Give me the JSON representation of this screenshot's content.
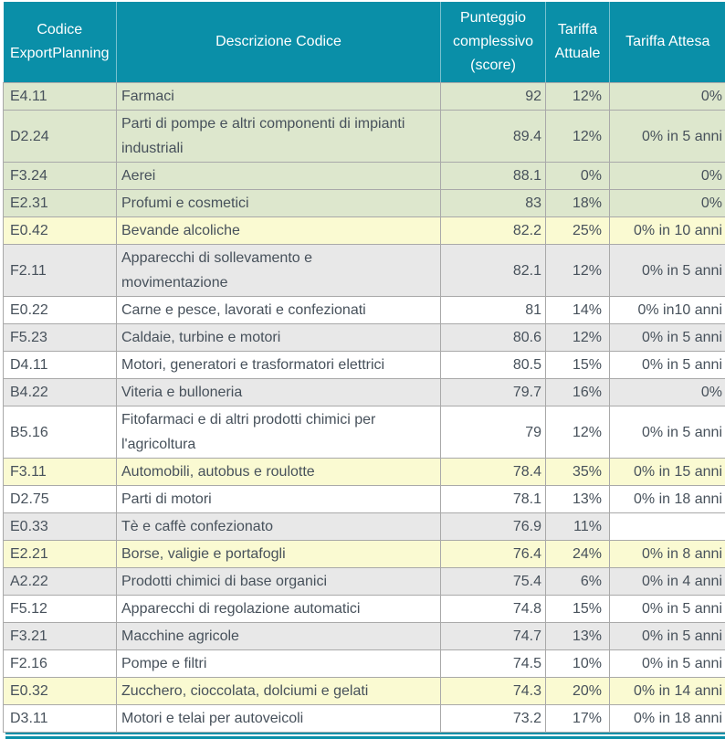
{
  "colors": {
    "header_bg": "#0a8fa8",
    "header_text": "#ffffff",
    "row_green": "#dde7cd",
    "row_yellow": "#fafad2",
    "row_gray": "#e8e8e8",
    "row_white": "#ffffff",
    "grid_line": "#a9a9a9",
    "body_text": "#47515b",
    "bottom_border": "#0a8fa8"
  },
  "chart_data": {
    "type": "table",
    "columns": [
      "Codice ExportPlanning",
      "Descrizione Codice",
      "Punteggio complessivo (score)",
      "Tariffa Attuale",
      "Tariffa Attesa"
    ],
    "rows": [
      {
        "code": "E4.11",
        "description": "Farmaci",
        "score": "92",
        "tariffa_attuale": "12%",
        "tariffa_attesa": "0%",
        "row_bg": "green"
      },
      {
        "code": "D2.24",
        "description": "Parti di pompe e altri componenti di impianti\nindustriali",
        "score": "89.4",
        "tariffa_attuale": "12%",
        "tariffa_attesa": "0% in 5 anni",
        "row_bg": "green"
      },
      {
        "code": "F3.24",
        "description": "Aerei",
        "score": "88.1",
        "tariffa_attuale": "0%",
        "tariffa_attesa": "0%",
        "row_bg": "green"
      },
      {
        "code": "E2.31",
        "description": "Profumi e cosmetici",
        "score": "83",
        "tariffa_attuale": "18%",
        "tariffa_attesa": "0%",
        "row_bg": "green"
      },
      {
        "code": "E0.42",
        "description": "Bevande alcoliche",
        "score": "82.2",
        "tariffa_attuale": "25%",
        "tariffa_attesa": "0% in 10 anni",
        "row_bg": "yellow"
      },
      {
        "code": "F2.11",
        "description": "Apparecchi di sollevamento e\nmovimentazione",
        "score": "82.1",
        "tariffa_attuale": "12%",
        "tariffa_attesa": "0% in 5 anni",
        "row_bg": "gray"
      },
      {
        "code": "E0.22",
        "description": "Carne e pesce, lavorati e confezionati",
        "score": "81",
        "tariffa_attuale": "14%",
        "tariffa_attesa": "0% in10 anni",
        "row_bg": "white"
      },
      {
        "code": "F5.23",
        "description": "Caldaie, turbine e motori",
        "score": "80.6",
        "tariffa_attuale": "12%",
        "tariffa_attesa": "0% in 5 anni",
        "row_bg": "gray"
      },
      {
        "code": "D4.11",
        "description": "Motori, generatori e trasformatori elettrici",
        "score": "80.5",
        "tariffa_attuale": "15%",
        "tariffa_attesa": "0% in 5 anni",
        "row_bg": "white"
      },
      {
        "code": "B4.22",
        "description": "Viteria e bulloneria",
        "score": "79.7",
        "tariffa_attuale": "16%",
        "tariffa_attesa": "0%",
        "row_bg": "gray"
      },
      {
        "code": "B5.16",
        "description": "Fitofarmaci e di altri prodotti chimici per\nl'agricoltura",
        "score": "79",
        "tariffa_attuale": "12%",
        "tariffa_attesa": "0% in 5 anni",
        "row_bg": "white"
      },
      {
        "code": "F3.11",
        "description": "Automobili, autobus e roulotte",
        "score": "78.4",
        "tariffa_attuale": "35%",
        "tariffa_attesa": "0% in 15 anni",
        "row_bg": "yellow"
      },
      {
        "code": "D2.75",
        "description": "Parti di motori",
        "score": "78.1",
        "tariffa_attuale": "13%",
        "tariffa_attesa": "0% in 18 anni",
        "row_bg": "white"
      },
      {
        "code": "E0.33",
        "description": "Tè e caffè confezionato",
        "score": "76.9",
        "tariffa_attuale": "11%",
        "tariffa_attesa": "",
        "row_bg": "gray",
        "tariffa_attesa_bg": "white"
      },
      {
        "code": "E2.21",
        "description": "Borse, valigie e portafogli",
        "score": "76.4",
        "tariffa_attuale": "24%",
        "tariffa_attesa": "0% in 8 anni",
        "row_bg": "yellow"
      },
      {
        "code": "A2.22",
        "description": "Prodotti chimici di base organici",
        "score": "75.4",
        "tariffa_attuale": "6%",
        "tariffa_attesa": "0% in 4 anni",
        "row_bg": "gray"
      },
      {
        "code": "F5.12",
        "description": "Apparecchi di regolazione automatici",
        "score": "74.8",
        "tariffa_attuale": "15%",
        "tariffa_attesa": "0% in 5 anni",
        "row_bg": "white"
      },
      {
        "code": "F3.21",
        "description": "Macchine agricole",
        "score": "74.7",
        "tariffa_attuale": "13%",
        "tariffa_attesa": "0% in 5 anni",
        "row_bg": "gray"
      },
      {
        "code": "F2.16",
        "description": "Pompe e filtri",
        "score": "74.5",
        "tariffa_attuale": "10%",
        "tariffa_attesa": "0% in 5 anni",
        "row_bg": "white"
      },
      {
        "code": "E0.32",
        "description": "Zucchero, cioccolata, dolciumi e gelati",
        "score": "74.3",
        "tariffa_attuale": "20%",
        "tariffa_attesa": "0% in 14 anni",
        "row_bg": "yellow"
      },
      {
        "code": "D3.11",
        "description": "Motori e telai per autoveicoli",
        "score": "73.2",
        "tariffa_attuale": "17%",
        "tariffa_attesa": "0% in 18 anni",
        "row_bg": "white"
      }
    ]
  }
}
